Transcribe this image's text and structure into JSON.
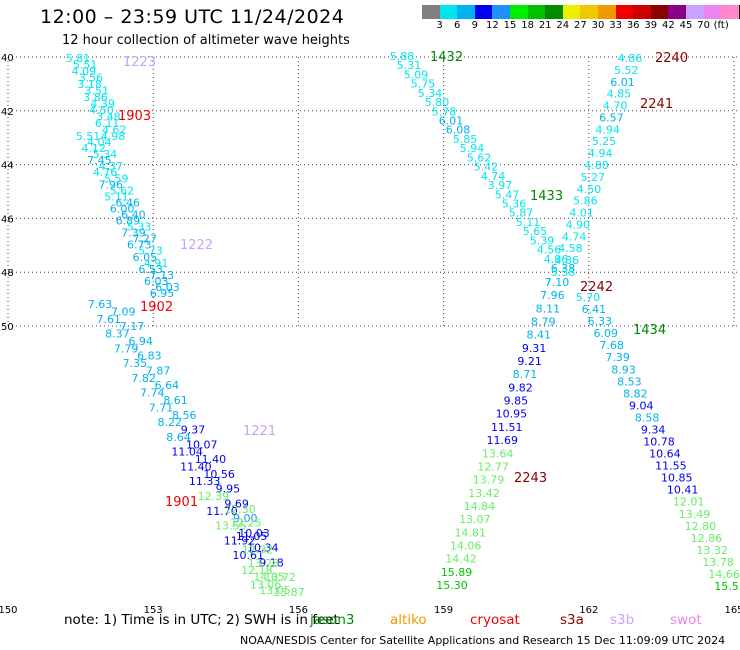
{
  "header": {
    "title": "12:00 – 23:59 UTC 11/24/2024",
    "subtitle": "12 hour collection of altimeter wave heights"
  },
  "colorbar": {
    "unit": "(ft)",
    "swatches": [
      "#808080",
      "#00e5ee",
      "#00b2ee",
      "#0000ee",
      "#1e90ff",
      "#00ee00",
      "#00c000",
      "#008b00",
      "#eeee00",
      "#eec900",
      "#ee9a00",
      "#ee0000",
      "#cd0000",
      "#8b0000",
      "#8b008b",
      "#c8a2ff",
      "#ee82ee",
      "#ff88cc",
      "#000000"
    ],
    "labels": [
      "3",
      "6",
      "9",
      "12",
      "15",
      "18",
      "21",
      "24",
      "27",
      "30",
      "33",
      "36",
      "39",
      "42",
      "45",
      "70"
    ]
  },
  "map": {
    "lon_ticks": [
      "150",
      "153",
      "156",
      "159",
      "162",
      "165"
    ],
    "lat_ticks": [
      "40",
      "42",
      "44",
      "46",
      "48",
      "50"
    ]
  },
  "tracks": [
    {
      "id": "t1223",
      "label": "1223",
      "color": "#c8a2ff",
      "points": [
        [
          "5.81",
          "#00e5ee"
        ],
        [
          "5.51",
          "#00e5ee"
        ],
        [
          "4.09",
          "#00e5ee"
        ],
        [
          "3.56",
          "#00e5ee"
        ],
        [
          "3.18",
          "#00e5ee"
        ],
        [
          "3.51",
          "#00e5ee"
        ],
        [
          "3.86",
          "#00e5ee"
        ],
        [
          "4.39",
          "#00e5ee"
        ],
        [
          "4.50",
          "#00e5ee"
        ],
        [
          "3.48",
          "#00e5ee"
        ],
        [
          "6.11",
          "#00e5ee"
        ],
        [
          "4.62",
          "#00e5ee"
        ],
        [
          "4.98",
          "#00e5ee"
        ]
      ]
    },
    {
      "id": "t1903",
      "label": "1903",
      "color": "#ee0000",
      "points": [
        [
          "5.51",
          "#00e5ee"
        ],
        [
          "4.04",
          "#00e5ee"
        ],
        [
          "4.12",
          "#00e5ee"
        ],
        [
          "5.34",
          "#00e5ee"
        ],
        [
          "7.45",
          "#00b2ee"
        ],
        [
          "4.37",
          "#00e5ee"
        ],
        [
          "4.76",
          "#00e5ee"
        ],
        [
          "5.59",
          "#00e5ee"
        ],
        [
          "7.96",
          "#00b2ee"
        ],
        [
          "5.62",
          "#00e5ee"
        ],
        [
          "5.11",
          "#00e5ee"
        ],
        [
          "6.46",
          "#00b2ee"
        ],
        [
          "6.00",
          "#00b2ee"
        ],
        [
          "6.40",
          "#00b2ee"
        ],
        [
          "6.89",
          "#00b2ee"
        ],
        [
          "5.33",
          "#00e5ee"
        ],
        [
          "7.39",
          "#00b2ee"
        ],
        [
          "7.27",
          "#00b2ee"
        ],
        [
          "6.73",
          "#00b2ee"
        ],
        [
          "5.73",
          "#00e5ee"
        ],
        [
          "6.05",
          "#00b2ee"
        ],
        [
          "4.91",
          "#00e5ee"
        ],
        [
          "6.53",
          "#00b2ee"
        ],
        [
          "7.13",
          "#00b2ee"
        ],
        [
          "6.03",
          "#00b2ee"
        ],
        [
          "6.03",
          "#00b2ee"
        ],
        [
          "6.95",
          "#00b2ee"
        ]
      ]
    },
    {
      "id": "t1222",
      "label": "1222",
      "color": "#c8a2ff",
      "points": []
    },
    {
      "id": "t1902",
      "label": "1902",
      "color": "#ee0000",
      "points": [
        [
          "7.63",
          "#00b2ee"
        ],
        [
          "7.09",
          "#00b2ee"
        ],
        [
          "7.61",
          "#00b2ee"
        ],
        [
          "7.17",
          "#00b2ee"
        ],
        [
          "8.37",
          "#00b2ee"
        ],
        [
          "6.94",
          "#00b2ee"
        ],
        [
          "7.79",
          "#00b2ee"
        ],
        [
          "6.83",
          "#00b2ee"
        ],
        [
          "7.35",
          "#00b2ee"
        ],
        [
          "7.87",
          "#00b2ee"
        ],
        [
          "7.82",
          "#00b2ee"
        ],
        [
          "6.64",
          "#00b2ee"
        ],
        [
          "7.74",
          "#00b2ee"
        ],
        [
          "8.61",
          "#00b2ee"
        ],
        [
          "7.71",
          "#00b2ee"
        ],
        [
          "8.56",
          "#00b2ee"
        ],
        [
          "8.22",
          "#00b2ee"
        ],
        [
          "9.37",
          "#0000ee"
        ],
        [
          "8.64",
          "#00b2ee"
        ],
        [
          "10.07",
          "#0000ee"
        ],
        [
          "11.04",
          "#0000ee"
        ],
        [
          "11.40",
          "#0000ee"
        ],
        [
          "11.40",
          "#0000ee"
        ],
        [
          "10.56",
          "#0000ee"
        ],
        [
          "11.33",
          "#0000ee"
        ],
        [
          "9.95",
          "#0000ee"
        ],
        [
          "12.39",
          "#66ee66"
        ],
        [
          "9.69",
          "#0000ee"
        ],
        [
          "11.70",
          "#0000ee"
        ],
        [
          "9.00",
          "#1e90ff"
        ],
        [
          "13.55",
          "#66ee66"
        ],
        [
          "10.03",
          "#0000ee"
        ],
        [
          "11.92",
          "#0000ee"
        ],
        [
          "10.34",
          "#0000ee"
        ],
        [
          "10.61",
          "#0000ee"
        ],
        [
          "9.18",
          "#0000ee"
        ],
        [
          "12.18",
          "#66ee66"
        ],
        [
          "13.72",
          "#66ee66"
        ],
        [
          "13.06",
          "#66ee66"
        ],
        [
          "13.87",
          "#66ee66"
        ]
      ]
    },
    {
      "id": "t1221",
      "label": "1221",
      "color": "#c8a2ff",
      "points": [
        [
          "12.30",
          "#66ee66"
        ],
        [
          "12.25",
          "#66ee66"
        ],
        [
          "11.05",
          "#0000ee"
        ],
        [
          "12.32",
          "#66ee66"
        ],
        [
          "13.28",
          "#66ee66"
        ],
        [
          "14.05",
          "#66ee66"
        ],
        [
          "13.05",
          "#66ee66"
        ]
      ]
    },
    {
      "id": "t1901",
      "label": "1901",
      "color": "#ee0000",
      "points": []
    },
    {
      "id": "t1432",
      "label": "1432",
      "color": "#008b00",
      "points": [
        [
          "5.88",
          "#00e5ee"
        ],
        [
          "5.31",
          "#00e5ee"
        ],
        [
          "5.09",
          "#00e5ee"
        ],
        [
          "5.75",
          "#00e5ee"
        ],
        [
          "5.34",
          "#00e5ee"
        ],
        [
          "5.80",
          "#00e5ee"
        ],
        [
          "5.78",
          "#00e5ee"
        ],
        [
          "6.01",
          "#00b2ee"
        ],
        [
          "6.08",
          "#00b2ee"
        ],
        [
          "5.85",
          "#00e5ee"
        ],
        [
          "5.94",
          "#00e5ee"
        ],
        [
          "5.62",
          "#00e5ee"
        ],
        [
          "5.42",
          "#00e5ee"
        ],
        [
          "4.74",
          "#00e5ee"
        ],
        [
          "3.97",
          "#00e5ee"
        ],
        [
          "5.47",
          "#00e5ee"
        ],
        [
          "5.36",
          "#00e5ee"
        ],
        [
          "5.87",
          "#00e5ee"
        ],
        [
          "5.11",
          "#00e5ee"
        ],
        [
          "5.65",
          "#00e5ee"
        ],
        [
          "5.39",
          "#00e5ee"
        ],
        [
          "4.56",
          "#00e5ee"
        ],
        [
          "4.96",
          "#00e5ee"
        ],
        [
          "6.38",
          "#00b2ee"
        ]
      ]
    },
    {
      "id": "t1433",
      "label": "1433",
      "color": "#008b00",
      "points": []
    },
    {
      "id": "t2242",
      "label": "2242",
      "color": "#8b0000",
      "points": [
        [
          "7.10",
          "#00b2ee"
        ],
        [
          "7.96",
          "#00b2ee"
        ],
        [
          "8.11",
          "#00b2ee"
        ],
        [
          "8.79",
          "#00b2ee"
        ],
        [
          "8.41",
          "#00b2ee"
        ],
        [
          "9.31",
          "#0000ee"
        ],
        [
          "9.21",
          "#0000ee"
        ],
        [
          "8.71",
          "#00b2ee"
        ],
        [
          "9.82",
          "#0000ee"
        ],
        [
          "9.85",
          "#0000ee"
        ],
        [
          "10.95",
          "#0000ee"
        ],
        [
          "11.51",
          "#0000ee"
        ],
        [
          "11.69",
          "#0000ee"
        ],
        [
          "13.64",
          "#66ee66"
        ],
        [
          "12.77",
          "#66ee66"
        ],
        [
          "13.79",
          "#66ee66"
        ],
        [
          "13.42",
          "#66ee66"
        ],
        [
          "14.84",
          "#66ee66"
        ],
        [
          "13.07",
          "#66ee66"
        ],
        [
          "14.81",
          "#66ee66"
        ],
        [
          "14.06",
          "#66ee66"
        ],
        [
          "14.42",
          "#66ee66"
        ],
        [
          "15.89",
          "#00c000"
        ],
        [
          "15.30",
          "#00c000"
        ]
      ]
    },
    {
      "id": "t2243",
      "label": "2243",
      "color": "#8b0000",
      "points": []
    },
    {
      "id": "t2240",
      "label": "2240",
      "color": "#8b0000",
      "points": [
        [
          "4.86",
          "#00e5ee"
        ],
        [
          "5.52",
          "#00e5ee"
        ],
        [
          "6.01",
          "#00b2ee"
        ],
        [
          "4.85",
          "#00e5ee"
        ],
        [
          "4.70",
          "#00e5ee"
        ],
        [
          "6.57",
          "#00b2ee"
        ],
        [
          "4.94",
          "#00e5ee"
        ],
        [
          "5.25",
          "#00e5ee"
        ],
        [
          "4.94",
          "#00e5ee"
        ],
        [
          "4.80",
          "#00e5ee"
        ],
        [
          "5.27",
          "#00e5ee"
        ],
        [
          "4.50",
          "#00e5ee"
        ],
        [
          "5.86",
          "#00e5ee"
        ],
        [
          "4.01",
          "#00e5ee"
        ],
        [
          "4.90",
          "#00e5ee"
        ],
        [
          "4.74",
          "#00e5ee"
        ],
        [
          "4.58",
          "#00e5ee"
        ],
        [
          "4.86",
          "#00e5ee"
        ],
        [
          "5.38",
          "#00e5ee"
        ]
      ]
    },
    {
      "id": "t2241",
      "label": "2241",
      "color": "#8b0000",
      "points": []
    },
    {
      "id": "t1434",
      "label": "1434",
      "color": "#008b00",
      "points": [
        [
          "5.70",
          "#00e5ee"
        ],
        [
          "6.41",
          "#00b2ee"
        ],
        [
          "6.33",
          "#00b2ee"
        ],
        [
          "6.09",
          "#00b2ee"
        ],
        [
          "7.68",
          "#00b2ee"
        ],
        [
          "7.39",
          "#00b2ee"
        ],
        [
          "8.93",
          "#00b2ee"
        ],
        [
          "8.53",
          "#00b2ee"
        ],
        [
          "8.82",
          "#00b2ee"
        ],
        [
          "9.04",
          "#0000ee"
        ],
        [
          "8.58",
          "#00b2ee"
        ],
        [
          "9.34",
          "#0000ee"
        ],
        [
          "10.78",
          "#0000ee"
        ],
        [
          "10.64",
          "#0000ee"
        ],
        [
          "11.55",
          "#0000ee"
        ],
        [
          "10.85",
          "#0000ee"
        ],
        [
          "10.41",
          "#0000ee"
        ],
        [
          "12.01",
          "#66ee66"
        ],
        [
          "13.49",
          "#66ee66"
        ],
        [
          "12.80",
          "#66ee66"
        ],
        [
          "12.86",
          "#66ee66"
        ],
        [
          "13.32",
          "#66ee66"
        ],
        [
          "13.78",
          "#66ee66"
        ],
        [
          "14.66",
          "#66ee66"
        ],
        [
          "15.55",
          "#00c000"
        ]
      ]
    }
  ],
  "note": "note:  1) Time is in UTC;  2) SWH is in feet",
  "satellites": [
    {
      "name": "jason3",
      "color": "#008b00"
    },
    {
      "name": "altiko",
      "color": "#ee9a00"
    },
    {
      "name": "cryosat",
      "color": "#ee0000"
    },
    {
      "name": "s3a",
      "color": "#8b0000"
    },
    {
      "name": "s3b",
      "color": "#c8a2ff"
    },
    {
      "name": "swot",
      "color": "#ee82ee"
    }
  ],
  "credit": "NOAA/NESDIS Center for Satellite Applications and Research    15 Dec 11:09:09 UTC 2024"
}
